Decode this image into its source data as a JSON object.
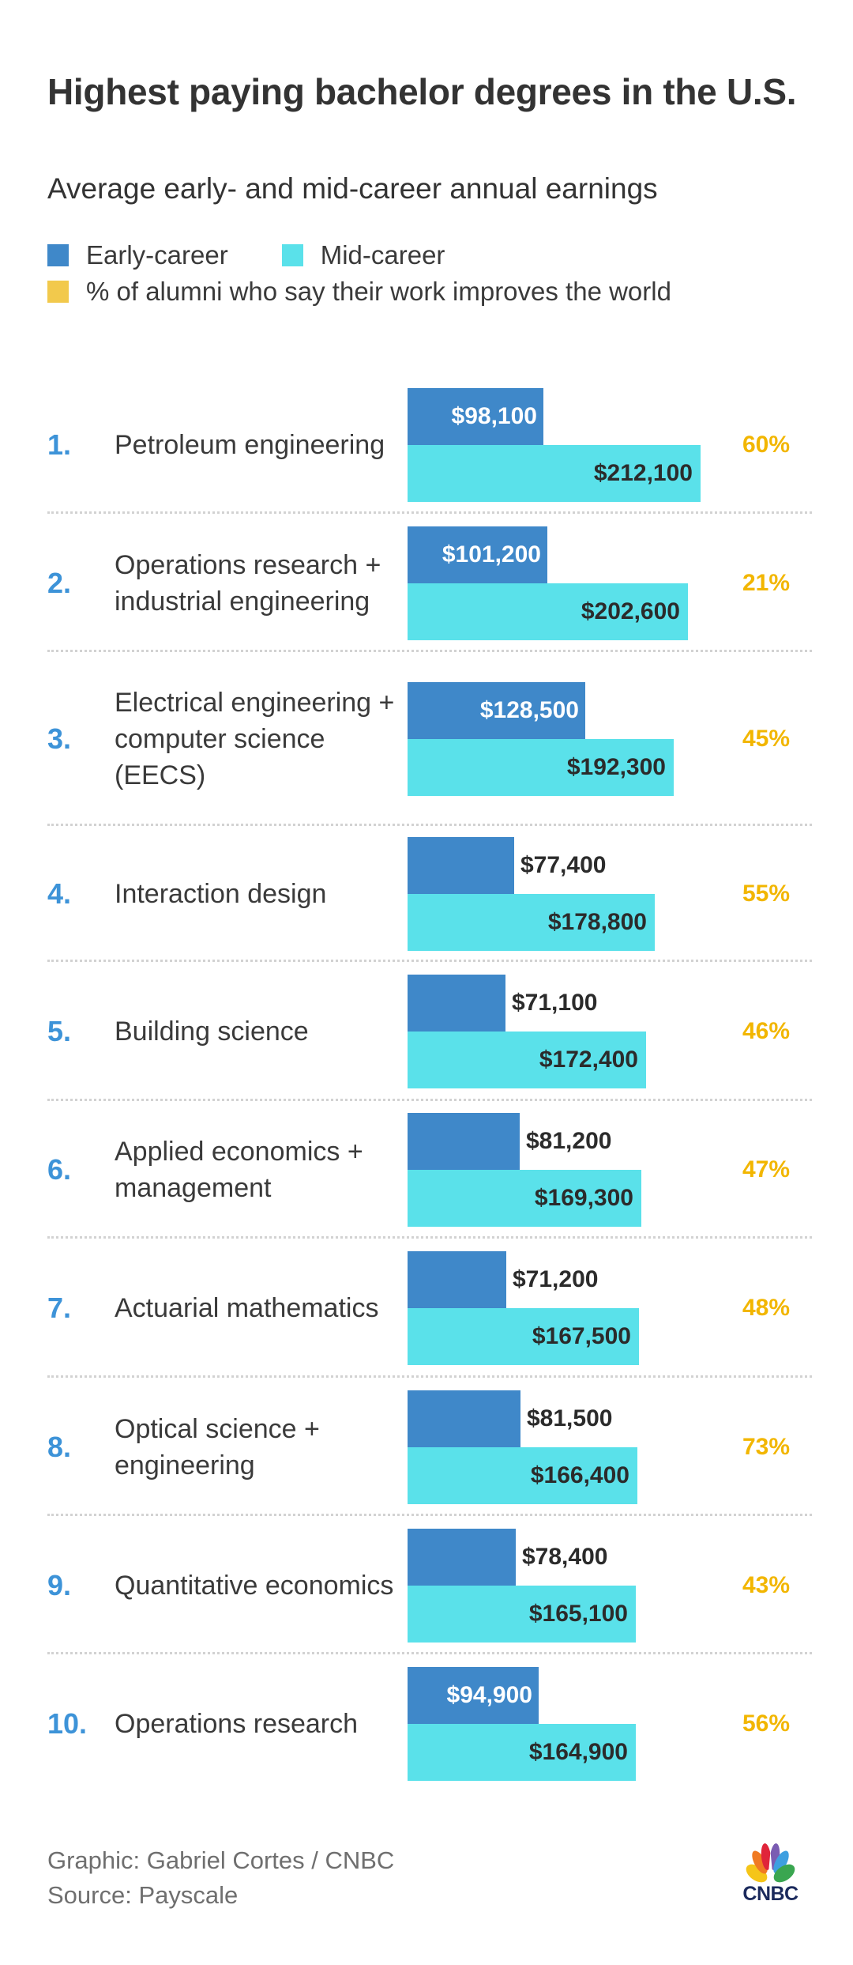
{
  "header": {
    "title": "Highest paying bachelor degrees in the U.S.",
    "subtitle": "Average early- and mid-career annual earnings"
  },
  "legend": [
    {
      "label": "Early-career",
      "color": "#3f88c9"
    },
    {
      "label": "Mid-career",
      "color": "#5ae1ea"
    },
    {
      "label": "% of alumni who say their work improves the world",
      "color": "#f2c94c"
    }
  ],
  "colors": {
    "early": "#3f88c9",
    "mid": "#5ae1ea",
    "percent": "#f2b600",
    "rank": "#3d93d8"
  },
  "footer": {
    "credit": "Graphic: Gabriel Cortes / CNBC",
    "source": "Source: Payscale",
    "logo_text": "CNBC"
  },
  "chart_data": {
    "type": "bar",
    "title": "Highest paying bachelor degrees in the U.S.",
    "subtitle": "Average early- and mid-career annual earnings",
    "orientation": "horizontal",
    "categories": [
      "Petroleum engineering",
      "Operations research + industrial engineering",
      "Electrical engineering + computer science (EECS)",
      "Interaction design",
      "Building science",
      "Applied economics + management",
      "Actuarial mathematics",
      "Optical science + engineering",
      "Quantitative economics",
      "Operations research"
    ],
    "ranks": [
      "1.",
      "2.",
      "3.",
      "4.",
      "5.",
      "6.",
      "7.",
      "8.",
      "9.",
      "10."
    ],
    "series": [
      {
        "name": "Early-career",
        "values": [
          98100,
          101200,
          128500,
          77400,
          71100,
          81200,
          71200,
          81500,
          78400,
          94900
        ],
        "labels": [
          "$98,100",
          "$101,200",
          "$128,500",
          "$77,400",
          "$71,100",
          "$81,200",
          "$71,200",
          "$81,500",
          "$78,400",
          "$94,900"
        ]
      },
      {
        "name": "Mid-career",
        "values": [
          212100,
          202600,
          192300,
          178800,
          172400,
          169300,
          167500,
          166400,
          165100,
          164900
        ],
        "labels": [
          "$212,100",
          "$202,600",
          "$192,300",
          "$178,800",
          "$172,400",
          "$169,300",
          "$167,500",
          "$166,400",
          "$165,100",
          "$164,900"
        ]
      },
      {
        "name": "% of alumni who say their work improves the world",
        "values": [
          60,
          21,
          45,
          55,
          46,
          47,
          48,
          73,
          43,
          56
        ],
        "labels": [
          "60%",
          "21%",
          "45%",
          "55%",
          "46%",
          "47%",
          "48%",
          "73%",
          "43%",
          "56%"
        ]
      }
    ],
    "xlabel": "",
    "ylabel": "",
    "xlim": [
      0,
      230000
    ],
    "grid": false,
    "legend": "top-left",
    "source": "Source: Payscale"
  }
}
